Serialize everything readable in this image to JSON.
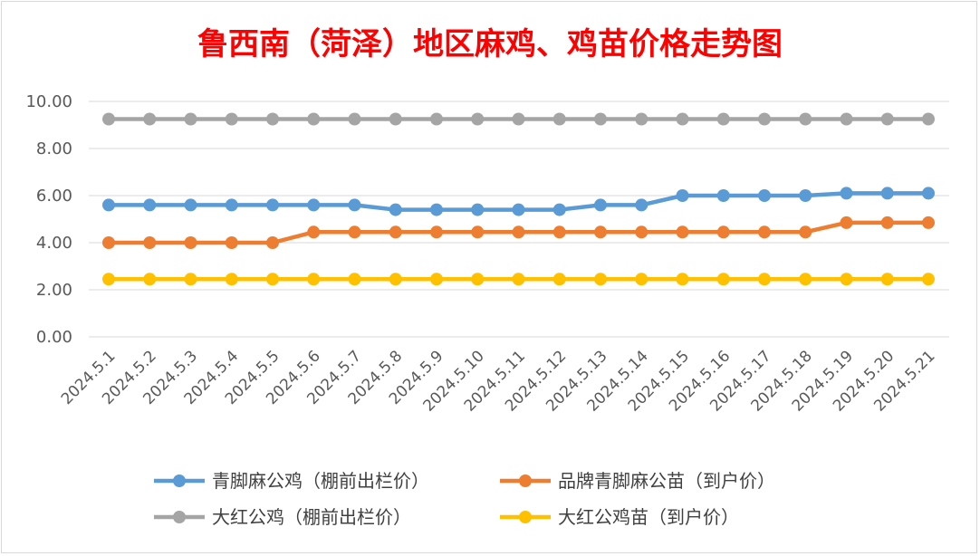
{
  "chart_data": {
    "type": "line",
    "title": "鲁西南（菏泽）地区麻鸡、鸡苗价格走势图",
    "categories": [
      "2024.5.1",
      "2024.5.2",
      "2024.5.3",
      "2024.5.4",
      "2024.5.5",
      "2024.5.6",
      "2024.5.7",
      "2024.5.8",
      "2024.5.9",
      "2024.5.10",
      "2024.5.11",
      "2024.5.12",
      "2024.5.13",
      "2024.5.14",
      "2024.5.15",
      "2024.5.16",
      "2024.5.17",
      "2024.5.18",
      "2024.5.19",
      "2024.5.20",
      "2024.5.21"
    ],
    "ylim": [
      0,
      10
    ],
    "yticks": [
      "0.00",
      "2.00",
      "4.00",
      "6.00",
      "8.00",
      "10.00"
    ],
    "grid": true,
    "legend_position": "bottom",
    "series": [
      {
        "name": "青脚麻公鸡（棚前出栏价）",
        "color": "#5b9bd5",
        "values": [
          5.6,
          5.6,
          5.6,
          5.6,
          5.6,
          5.6,
          5.6,
          5.4,
          5.4,
          5.4,
          5.4,
          5.4,
          5.6,
          5.6,
          6.0,
          6.0,
          6.0,
          6.0,
          6.1,
          6.1,
          6.1
        ]
      },
      {
        "name": "品牌青脚麻公苗（到户价）",
        "color": "#ed7d31",
        "values": [
          4.0,
          4.0,
          4.0,
          4.0,
          4.0,
          4.45,
          4.45,
          4.45,
          4.45,
          4.45,
          4.45,
          4.45,
          4.45,
          4.45,
          4.45,
          4.45,
          4.45,
          4.45,
          4.85,
          4.85,
          4.85
        ]
      },
      {
        "name": "大红公鸡（棚前出栏价）",
        "color": "#a5a5a5",
        "values": [
          9.25,
          9.25,
          9.25,
          9.25,
          9.25,
          9.25,
          9.25,
          9.25,
          9.25,
          9.25,
          9.25,
          9.25,
          9.25,
          9.25,
          9.25,
          9.25,
          9.25,
          9.25,
          9.25,
          9.25,
          9.25
        ]
      },
      {
        "name": "大红公鸡苗（到户价）",
        "color": "#ffc000",
        "values": [
          2.45,
          2.45,
          2.45,
          2.45,
          2.45,
          2.45,
          2.45,
          2.45,
          2.45,
          2.45,
          2.45,
          2.45,
          2.45,
          2.45,
          2.45,
          2.45,
          2.45,
          2.45,
          2.45,
          2.45,
          2.45
        ]
      }
    ]
  }
}
